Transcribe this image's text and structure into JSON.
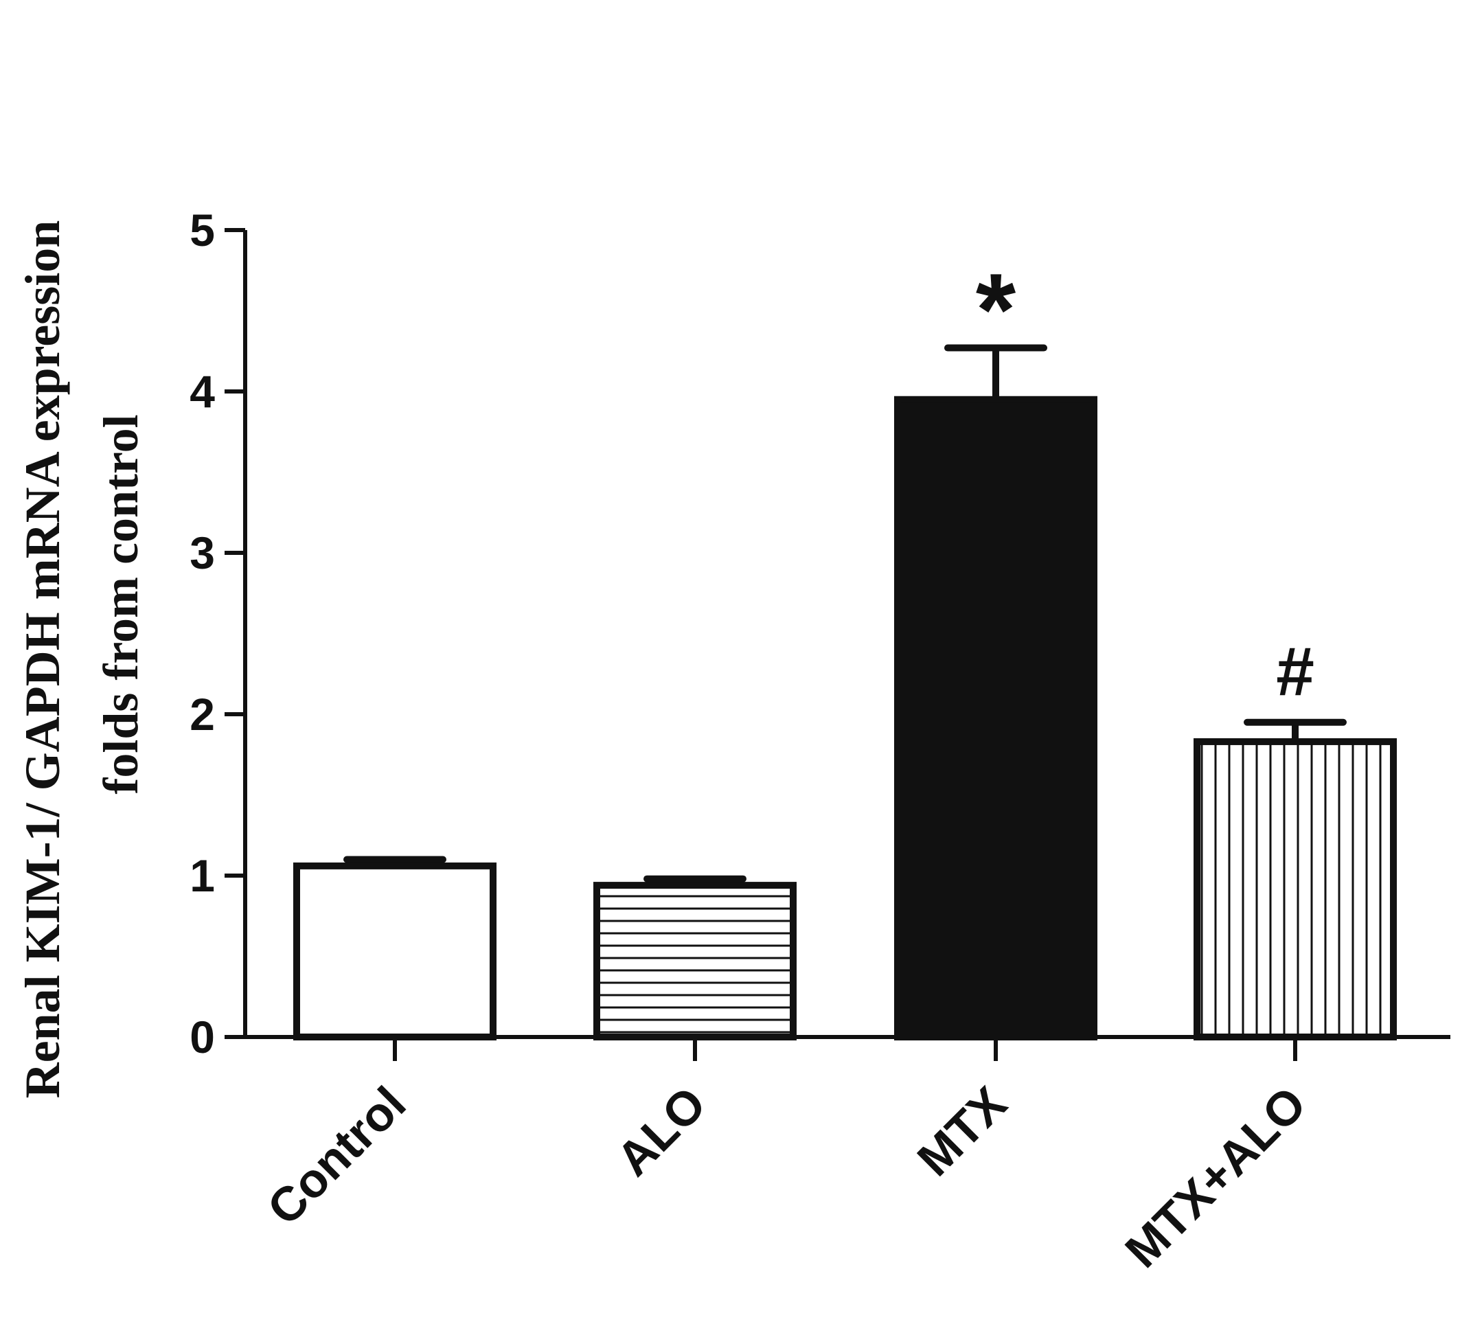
{
  "chart_data": {
    "type": "bar",
    "title": "",
    "ylabel": {
      "line1": "Renal  KIM-1/ GAPDH mRNA expression",
      "line2": "folds from control"
    },
    "xlabel": "",
    "ylim": [
      0,
      5
    ],
    "yticks": [
      "0",
      "1",
      "2",
      "3",
      "4",
      "5"
    ],
    "categories": [
      "Control",
      "ALO",
      "MTX",
      "MTX+ALO"
    ],
    "values": [
      1.06,
      0.94,
      3.95,
      1.83
    ],
    "errors": [
      0.04,
      0.04,
      0.32,
      0.12
    ],
    "patterns": [
      "white",
      "horizontal-lines",
      "solid-black",
      "vertical-lines"
    ],
    "annotations": [
      "",
      "",
      "*",
      "#"
    ],
    "grid": false,
    "legend": "none",
    "colors": {
      "ink": "#111111",
      "background": "#ffffff"
    }
  }
}
